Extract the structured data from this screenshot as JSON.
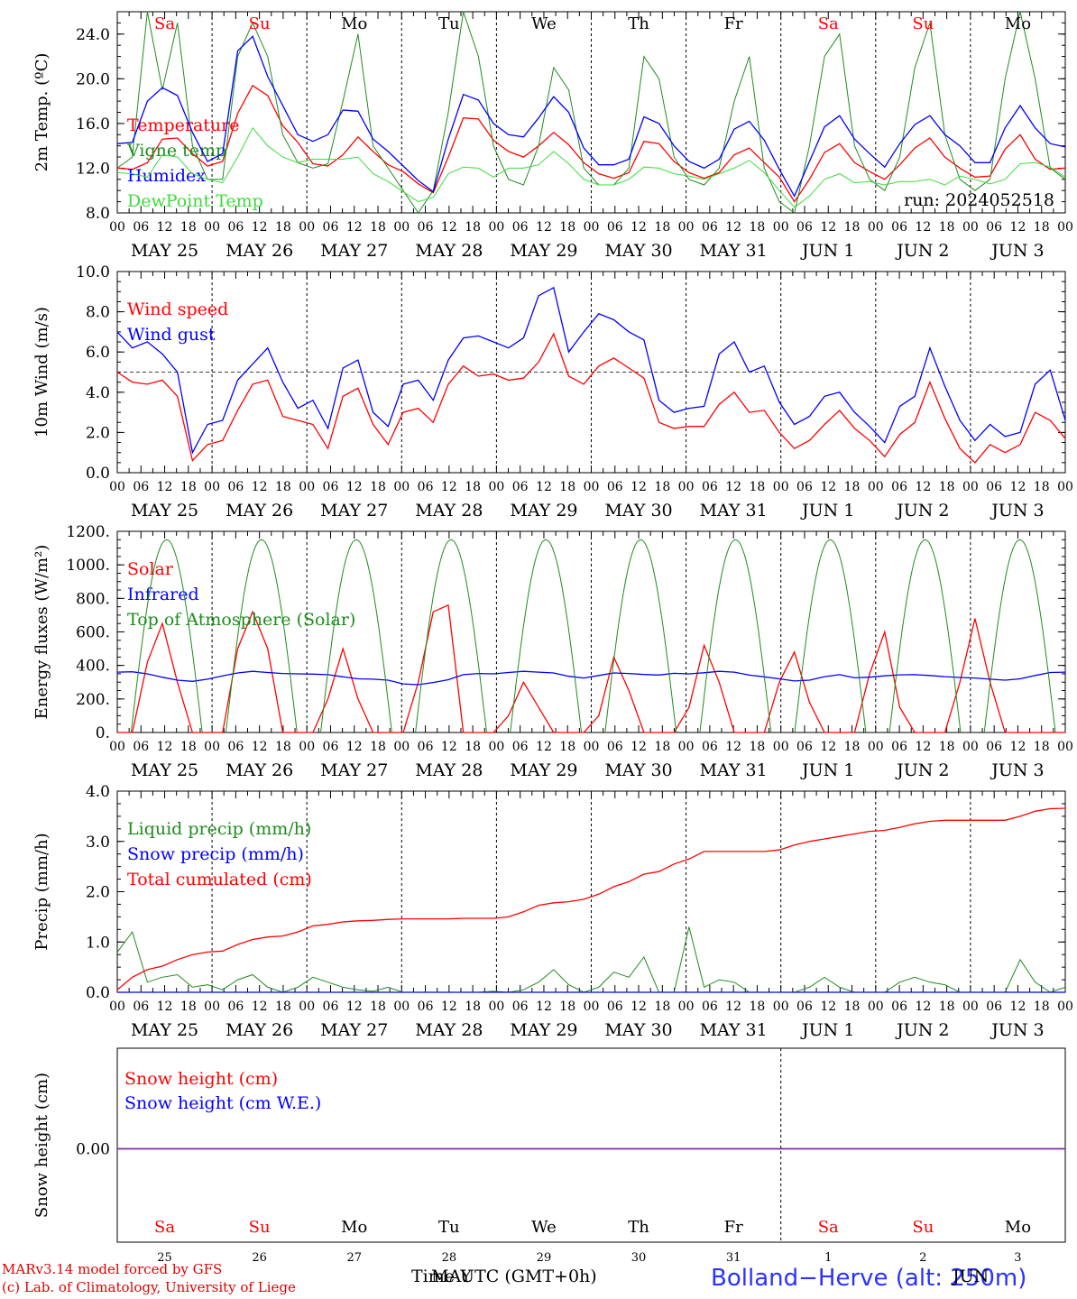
{
  "colors": {
    "red": "#ff0000",
    "green": "#00a000",
    "darkgreen": "#1e8c1e",
    "blue": "#0000ff",
    "lime": "#3cdc3c",
    "purple": "#7d2da0",
    "black": "#000000"
  },
  "credits": {
    "line1": "MARv3.14 model forced by GFS",
    "line2": "(c) Lab. of Climatology, University of Liege"
  },
  "station": "Bolland−Herve (alt: 250m)",
  "time_label": "Time UTC (GMT+0h)",
  "bottom_month_jun": "JUN",
  "bottom_month_may": "MAY",
  "chart_data": {
    "type": "line",
    "days": [
      "MAY 25",
      "MAY 26",
      "MAY 27",
      "MAY 28",
      "MAY 29",
      "MAY 30",
      "MAY 31",
      "JUN  1",
      "JUN  2",
      "JUN  3"
    ],
    "weekdays": [
      {
        "label": "Sa",
        "weekend": true
      },
      {
        "label": "Su",
        "weekend": true
      },
      {
        "label": "Mo",
        "weekend": false
      },
      {
        "label": "Tu",
        "weekend": false
      },
      {
        "label": "We",
        "weekend": false
      },
      {
        "label": "Th",
        "weekend": false
      },
      {
        "label": "Fr",
        "weekend": false
      },
      {
        "label": "Sa",
        "weekend": true
      },
      {
        "label": "Su",
        "weekend": true
      },
      {
        "label": "Mo",
        "weekend": false
      }
    ],
    "day_numbers": [
      "25",
      "26",
      "27",
      "28",
      "29",
      "30",
      "31",
      "1",
      "2",
      "3"
    ],
    "hour_ticks": [
      "00",
      "06",
      "12",
      "18"
    ],
    "panels": [
      {
        "id": "temp",
        "ylabel": "2m Temp. (ºC)",
        "ylim": [
          8,
          26
        ],
        "yticks": [
          8,
          12,
          16,
          20,
          24
        ],
        "yticklabels": [
          "8.0",
          "12.0",
          "16.0",
          "20.0",
          "24.0"
        ],
        "annotation": "run: 2024052518",
        "series": [
          {
            "name": "Temperature",
            "color": "red",
            "values": [
              12,
              11.9,
              12.5,
              14.6,
              14.7,
              13.3,
              12.2,
              12.6,
              16.9,
              19.4,
              18.5,
              15.8,
              14.3,
              12.4,
              12.2,
              13.2,
              14.8,
              13.5,
              12.3,
              11.7,
              10.6,
              9.8,
              13,
              16.5,
              16.4,
              14.5,
              13.5,
              13,
              14,
              15.2,
              14.1,
              12.5,
              11.5,
              11.1,
              11.6,
              14.4,
              14.2,
              12.6,
              11.6,
              11.1,
              11.6,
              13.2,
              13.8,
              12.5,
              11.2,
              9,
              11,
              13.4,
              14.2,
              12.5,
              11.7,
              11,
              12.3,
              13.8,
              14.7,
              13,
              12,
              11.2,
              11.3,
              13.7,
              15,
              12.8,
              11.9,
              12
            ]
          },
          {
            "name": "Vigne temp",
            "color": "darkgreen",
            "values": [
              12,
              13,
              26,
              19,
              25,
              14,
              11,
              11,
              22,
              25,
              22,
              15,
              12.5,
              12,
              12.4,
              18,
              24,
              14,
              12,
              10,
              8,
              10,
              17,
              26,
              22,
              14,
              11,
              10.5,
              14,
              21,
              19,
              12,
              10.5,
              10.5,
              12,
              22,
              20,
              13,
              11,
              10.5,
              12,
              18,
              22,
              12,
              9,
              7.5,
              14,
              22,
              24,
              14,
              11,
              10,
              13,
              21,
              25,
              15,
              11,
              10,
              11,
              20,
              26,
              20,
              12,
              11
            ]
          },
          {
            "name": "Humidex",
            "color": "blue",
            "values": [
              14.2,
              14.3,
              18,
              19.2,
              18.5,
              15.2,
              12.6,
              13.3,
              22.5,
              23.8,
              20.2,
              17.6,
              15,
              14.4,
              15,
              17.2,
              17.1,
              14.6,
              13.5,
              12.2,
              10.9,
              9.9,
              14.6,
              18.6,
              18.1,
              16,
              15,
              14.8,
              16.5,
              18.4,
              17,
              13.8,
              12.3,
              12.3,
              12.8,
              16.6,
              16,
              14,
              12.6,
              12,
              12.8,
              15.5,
              16.2,
              14.5,
              11.9,
              9.5,
              12.6,
              15.7,
              16.7,
              14.6,
              13.3,
              12.1,
              14.2,
              15.9,
              16.7,
              15,
              14,
              12.5,
              12.5,
              15.6,
              17.6,
              15.6,
              14.2,
              13.9
            ]
          },
          {
            "name": "DewPoint Temp",
            "color": "lime",
            "values": [
              11.6,
              11.5,
              11.2,
              13.2,
              13,
              11.5,
              11,
              10.7,
              13,
              15.6,
              14,
              13,
              12.5,
              12.8,
              12.8,
              12.8,
              13,
              11.5,
              10.8,
              9.9,
              9,
              9.4,
              11.5,
              12.1,
              12,
              11.2,
              12,
              12,
              12.3,
              13.5,
              12.4,
              11,
              10.5,
              10.5,
              11,
              12.1,
              12,
              11.5,
              11.3,
              11,
              11.5,
              12,
              12.7,
              11.6,
              10,
              8.5,
              9.5,
              11,
              11.5,
              10.7,
              10.8,
              10.5,
              10.8,
              10.8,
              11,
              10.5,
              11.3,
              11,
              10.6,
              11,
              12.4,
              12.5,
              12.1,
              11.2
            ]
          }
        ]
      },
      {
        "id": "wind",
        "ylabel": "10m Wind (m/s)",
        "ylim": [
          0,
          10
        ],
        "yticks": [
          0,
          2,
          4,
          6,
          8,
          10
        ],
        "yticklabels": [
          "0.0",
          "2.0",
          "4.0",
          "6.0",
          "8.0",
          "10.0"
        ],
        "ref_line": 5,
        "series": [
          {
            "name": "Wind speed",
            "color": "red",
            "values": [
              5,
              4.5,
              4.4,
              4.6,
              3.8,
              0.6,
              1.4,
              1.6,
              3.1,
              4.4,
              4.6,
              2.8,
              2.6,
              2.4,
              1.2,
              3.8,
              4.2,
              2.4,
              1.4,
              3,
              3.2,
              2.5,
              4.4,
              5.3,
              4.8,
              4.9,
              4.6,
              4.7,
              5.5,
              6.9,
              4.8,
              4.4,
              5.3,
              5.7,
              5.2,
              4.7,
              2.5,
              2.2,
              2.3,
              2.3,
              3.4,
              4,
              3,
              3.1,
              2,
              1.2,
              1.6,
              2.4,
              3.1,
              2.2,
              1.6,
              0.8,
              1.9,
              2.5,
              4.5,
              2.7,
              1.2,
              0.5,
              1.4,
              1,
              1.4,
              3,
              2.6,
              1.7
            ]
          },
          {
            "name": "Wind gust",
            "color": "blue",
            "values": [
              7,
              6.2,
              6.5,
              5.9,
              5,
              1,
              2.4,
              2.6,
              4.6,
              5.4,
              6.2,
              4.5,
              3.2,
              3.6,
              2.2,
              5.2,
              5.6,
              3,
              2.3,
              4.4,
              4.6,
              3.6,
              5.6,
              6.7,
              6.8,
              6.5,
              6.2,
              6.7,
              8.8,
              9.2,
              6,
              7,
              7.9,
              7.6,
              7,
              6.6,
              3.6,
              3,
              3.2,
              3.3,
              5.9,
              6.5,
              5,
              5.3,
              3.5,
              2.4,
              2.8,
              3.8,
              4,
              3,
              2.3,
              1.5,
              3.3,
              3.8,
              6.2,
              4.3,
              2.6,
              1.6,
              2.4,
              1.8,
              2,
              4.4,
              5.1,
              2.6
            ]
          }
        ]
      },
      {
        "id": "energy",
        "ylabel": "Energy fluxes (W/m²)",
        "ylim": [
          0,
          1200
        ],
        "yticks": [
          0,
          200,
          400,
          600,
          800,
          1000,
          1200
        ],
        "yticklabels": [
          "0.",
          "200.",
          "400.",
          "600.",
          "800.",
          "1000.",
          "1200."
        ],
        "series": [
          {
            "name": "Solar",
            "color": "red",
            "values": [
              0,
              0,
              420,
              650,
              300,
              0,
              0,
              0,
              500,
              720,
              500,
              0,
              0,
              0,
              200,
              500,
              200,
              0,
              0,
              0,
              300,
              720,
              760,
              0,
              0,
              0,
              100,
              300,
              150,
              0,
              0,
              0,
              100,
              450,
              250,
              0,
              0,
              0,
              150,
              520,
              300,
              0,
              0,
              0,
              300,
              480,
              180,
              0,
              0,
              0,
              350,
              600,
              150,
              0,
              0,
              0,
              300,
              680,
              300,
              0,
              0,
              0,
              0,
              0
            ]
          },
          {
            "name": "Infrared",
            "color": "blue",
            "values": [
              360,
              362,
              350,
              330,
              312,
              305,
              318,
              338,
              355,
              365,
              358,
              352,
              350,
              348,
              345,
              332,
              320,
              318,
              312,
              290,
              285,
              298,
              315,
              345,
              352,
              350,
              358,
              365,
              360,
              355,
              335,
              325,
              340,
              355,
              352,
              346,
              343,
              353,
              350,
              356,
              365,
              360,
              342,
              332,
              320,
              307,
              312,
              333,
              345,
              326,
              330,
              338,
              344,
              345,
              340,
              333,
              328,
              325,
              318,
              312,
              320,
              340,
              358,
              360
            ]
          },
          {
            "name": "Top of Atmosphere (Solar)",
            "color": "darkgreen",
            "toa_peak": 1150
          }
        ]
      },
      {
        "id": "precip",
        "ylabel": "Precip (mm/h)",
        "ylim": [
          0,
          4
        ],
        "yticks": [
          0,
          1,
          2,
          3,
          4
        ],
        "yticklabels": [
          "0.0",
          "1.0",
          "2.0",
          "3.0",
          "4.0"
        ],
        "series": [
          {
            "name": "Liquid precip (mm/h)",
            "color": "darkgreen",
            "values": [
              0.8,
              1.2,
              0.2,
              0.3,
              0.35,
              0.1,
              0.15,
              0.05,
              0.25,
              0.35,
              0.1,
              0,
              0.1,
              0.3,
              0.2,
              0.1,
              0.05,
              0.02,
              0.1,
              0,
              0,
              0,
              0,
              0,
              0,
              0.02,
              0,
              0.05,
              0.2,
              0.45,
              0.15,
              0,
              0.1,
              0.4,
              0.3,
              0.7,
              0,
              0,
              1.3,
              0.1,
              0.25,
              0.2,
              0,
              0,
              0,
              0,
              0.1,
              0.3,
              0.1,
              0,
              0,
              0,
              0.2,
              0.3,
              0.2,
              0.15,
              0,
              0,
              0,
              0,
              0.65,
              0.2,
              0,
              0.1
            ]
          },
          {
            "name": "Snow precip (mm/h)",
            "color": "blue",
            "values": [
              0,
              0,
              0,
              0,
              0,
              0,
              0,
              0,
              0,
              0,
              0,
              0,
              0,
              0,
              0,
              0,
              0,
              0,
              0,
              0,
              0,
              0,
              0,
              0,
              0,
              0,
              0,
              0,
              0,
              0,
              0,
              0,
              0,
              0,
              0,
              0,
              0,
              0,
              0,
              0,
              0,
              0,
              0,
              0,
              0,
              0,
              0,
              0,
              0,
              0,
              0,
              0,
              0,
              0,
              0,
              0,
              0,
              0,
              0,
              0,
              0,
              0,
              0,
              0
            ]
          },
          {
            "name": "Total cumulated (cm)",
            "color": "red",
            "values": [
              0.05,
              0.3,
              0.45,
              0.52,
              0.65,
              0.75,
              0.8,
              0.82,
              0.95,
              1.05,
              1.1,
              1.12,
              1.2,
              1.32,
              1.35,
              1.4,
              1.42,
              1.43,
              1.45,
              1.46,
              1.46,
              1.46,
              1.46,
              1.47,
              1.47,
              1.47,
              1.5,
              1.6,
              1.73,
              1.78,
              1.8,
              1.85,
              1.95,
              2.1,
              2.2,
              2.35,
              2.4,
              2.55,
              2.65,
              2.8,
              2.8,
              2.8,
              2.8,
              2.8,
              2.83,
              2.93,
              3.0,
              3.05,
              3.1,
              3.15,
              3.2,
              3.22,
              3.28,
              3.35,
              3.4,
              3.42,
              3.42,
              3.42,
              3.42,
              3.42,
              3.5,
              3.6,
              3.65,
              3.66
            ]
          }
        ]
      },
      {
        "id": "snow",
        "ylabel": "Snow height (cm)",
        "yticklabels": [
          "0.00"
        ],
        "series": [
          {
            "name": "Snow height (cm)",
            "color": "red",
            "values": [
              0,
              0
            ]
          },
          {
            "name": "Snow height (cm W.E.)",
            "color": "blue",
            "values": [
              0,
              0
            ]
          }
        ]
      }
    ]
  }
}
